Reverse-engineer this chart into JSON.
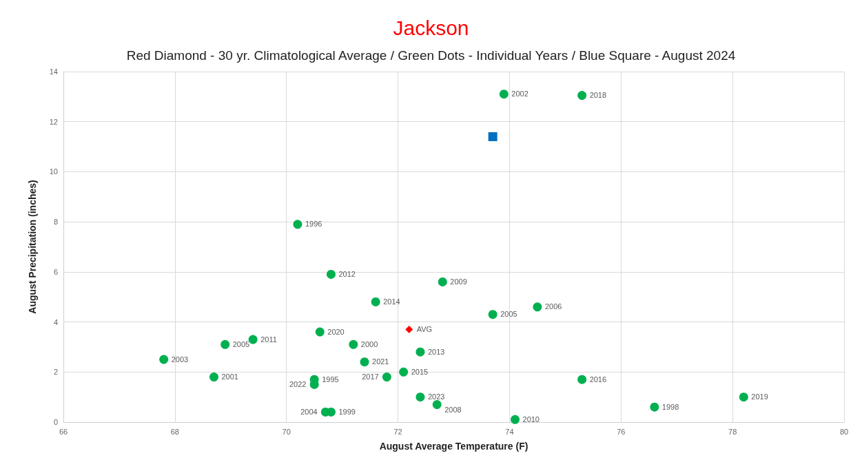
{
  "chart_data": {
    "type": "scatter",
    "title": "Jackson",
    "subtitle": "Red Diamond - 30 yr. Climatological Average / Green Dots - Individual Years / Blue Square - August 2024",
    "xlabel": "August Average Temperature (F)",
    "ylabel": "August Precipitation (inches)",
    "xlim": [
      66,
      80
    ],
    "xticks": [
      66,
      68,
      70,
      72,
      74,
      76,
      78,
      80
    ],
    "ylim": [
      0,
      14
    ],
    "yticks": [
      0,
      2,
      4,
      6,
      8,
      10,
      12,
      14
    ],
    "grid": true,
    "series": [
      {
        "color": "#00b050",
        "marker": "circle",
        "x": [
          73.9,
          75.3,
          70.2,
          70.8,
          72.8,
          71.6,
          73.7,
          74.5,
          70.6,
          69.4,
          68.9,
          71.2,
          72.4,
          67.8,
          71.4,
          72.1,
          71.8,
          68.7,
          70.5,
          70.5,
          75.3,
          72.4,
          72.7,
          74.1,
          76.6,
          78.2,
          70.7,
          70.8
        ],
        "values": [
          13.1,
          13.05,
          7.9,
          5.9,
          5.6,
          4.8,
          4.3,
          4.6,
          3.6,
          3.3,
          3.1,
          3.1,
          2.8,
          2.5,
          2.4,
          2.0,
          1.8,
          1.8,
          1.7,
          1.5,
          1.7,
          1.0,
          0.7,
          0.1,
          0.6,
          1.0,
          0.4,
          0.4
        ]
      },
      {
        "color": "#ff0000",
        "marker": "diamond",
        "x": [
          72.2
        ],
        "values": [
          3.7
        ]
      },
      {
        "color": "#0070c0",
        "marker": "square",
        "x": [
          73.7
        ],
        "values": [
          11.4
        ]
      }
    ],
    "annotations": [
      {
        "text": "2002",
        "x": 73.9,
        "y": 13.1
      },
      {
        "text": "2018",
        "x": 75.3,
        "y": 13.05
      },
      {
        "text": "1996",
        "x": 70.2,
        "y": 7.9
      },
      {
        "text": "2012",
        "x": 70.8,
        "y": 5.9
      },
      {
        "text": "2009",
        "x": 72.8,
        "y": 5.6
      },
      {
        "text": "2014",
        "x": 71.6,
        "y": 4.8
      },
      {
        "text": "2005",
        "x": 73.7,
        "y": 4.3
      },
      {
        "text": "2006",
        "x": 74.5,
        "y": 4.6
      },
      {
        "text": "2020",
        "x": 70.6,
        "y": 3.6
      },
      {
        "text": "2011",
        "x": 69.4,
        "y": 3.3
      },
      {
        "text": "2005",
        "x": 68.9,
        "y": 3.1
      },
      {
        "text": "2000",
        "x": 71.2,
        "y": 3.1
      },
      {
        "text": "2013",
        "x": 72.4,
        "y": 2.8
      },
      {
        "text": "2003",
        "x": 67.8,
        "y": 2.5
      },
      {
        "text": "2021",
        "x": 71.4,
        "y": 2.4
      },
      {
        "text": "2015",
        "x": 72.1,
        "y": 2.0
      },
      {
        "text": "2017",
        "x": 71.8,
        "y": 1.8
      },
      {
        "text": "2001",
        "x": 68.7,
        "y": 1.8
      },
      {
        "text": "1995",
        "x": 70.5,
        "y": 1.7
      },
      {
        "text": "2022",
        "x": 70.5,
        "y": 1.5
      },
      {
        "text": "2016",
        "x": 75.3,
        "y": 1.7
      },
      {
        "text": "2023",
        "x": 72.4,
        "y": 1.0
      },
      {
        "text": "2008",
        "x": 72.7,
        "y": 0.7
      },
      {
        "text": "2010",
        "x": 74.1,
        "y": 0.1
      },
      {
        "text": "1998",
        "x": 76.6,
        "y": 0.6
      },
      {
        "text": "2019",
        "x": 78.2,
        "y": 1.0
      },
      {
        "text": "1999",
        "x": 70.8,
        "y": 0.4
      },
      {
        "text": "2004",
        "x": 70.7,
        "y": 0.4
      },
      {
        "text": "AVG",
        "x": 72.2,
        "y": 3.7
      }
    ]
  }
}
